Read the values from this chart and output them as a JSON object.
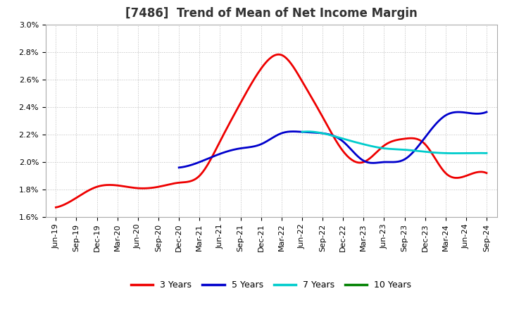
{
  "title": "[7486]  Trend of Mean of Net Income Margin",
  "ylim": [
    0.016,
    0.03
  ],
  "yticks": [
    0.016,
    0.018,
    0.02,
    0.022,
    0.024,
    0.026,
    0.028,
    0.03
  ],
  "ytick_labels": [
    "1.6%",
    "1.8%",
    "2.0%",
    "2.2%",
    "2.4%",
    "2.6%",
    "2.8%",
    "3.0%"
  ],
  "x_labels": [
    "Jun-19",
    "Sep-19",
    "Dec-19",
    "Mar-20",
    "Jun-20",
    "Sep-20",
    "Dec-20",
    "Mar-21",
    "Jun-21",
    "Sep-21",
    "Dec-21",
    "Mar-22",
    "Jun-22",
    "Sep-22",
    "Dec-22",
    "Mar-23",
    "Jun-23",
    "Sep-23",
    "Dec-23",
    "Mar-24",
    "Jun-24",
    "Sep-24"
  ],
  "series": {
    "3 Years": {
      "color": "#ee0000",
      "values": [
        0.0167,
        0.0174,
        0.0182,
        0.0183,
        0.0181,
        0.0182,
        0.0185,
        0.019,
        0.0215,
        0.0243,
        0.0268,
        0.0278,
        0.0259,
        0.0233,
        0.0208,
        0.02,
        0.0212,
        0.0217,
        0.0213,
        0.0192,
        0.019,
        0.0192
      ]
    },
    "5 Years": {
      "color": "#0000cc",
      "values": [
        null,
        null,
        null,
        null,
        null,
        null,
        0.0196,
        0.02,
        0.0206,
        0.021,
        0.0213,
        0.0221,
        0.0222,
        0.0221,
        0.0215,
        0.0201,
        0.02,
        0.0202,
        0.0218,
        0.0234,
        0.0236,
        0.02365
      ]
    },
    "7 Years": {
      "color": "#00cccc",
      "values": [
        null,
        null,
        null,
        null,
        null,
        null,
        null,
        null,
        null,
        null,
        null,
        null,
        0.0222,
        0.0221,
        0.0217,
        0.0213,
        0.021,
        0.0209,
        0.02075,
        0.02065,
        0.02065,
        0.02065
      ]
    },
    "10 Years": {
      "color": "#008000",
      "values": [
        null,
        null,
        null,
        null,
        null,
        null,
        null,
        null,
        null,
        null,
        null,
        null,
        null,
        null,
        null,
        null,
        null,
        null,
        null,
        null,
        null,
        null
      ]
    }
  },
  "legend_labels": [
    "3 Years",
    "5 Years",
    "7 Years",
    "10 Years"
  ],
  "background_color": "#ffffff",
  "plot_background_color": "#ffffff",
  "grid_color": "#aaaaaa",
  "title_fontsize": 12,
  "tick_fontsize": 8
}
